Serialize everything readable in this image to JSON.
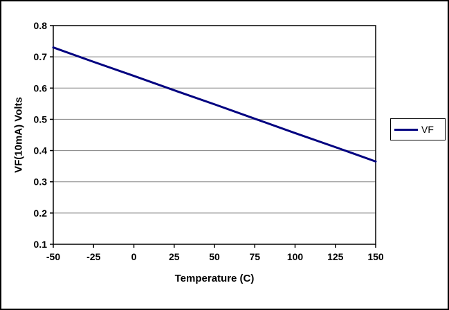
{
  "colors": {
    "line": "#000080",
    "grid": "#808080",
    "axis": "#000000",
    "background": "#ffffff"
  },
  "chart_data": {
    "type": "line",
    "title": "",
    "xlabel": "Temperature (C)",
    "ylabel": "VF(10mA) Volts",
    "xlim": [
      -50,
      150
    ],
    "ylim": [
      0.1,
      0.8
    ],
    "xticks": [
      -50,
      -25,
      0,
      25,
      50,
      75,
      100,
      125,
      150
    ],
    "yticks": [
      0.1,
      0.2,
      0.3,
      0.4,
      0.5,
      0.6,
      0.7,
      0.8
    ],
    "grid": "horizontal",
    "legend_position": "right",
    "series": [
      {
        "name": "VF",
        "color": "#000080",
        "x": [
          -50,
          -25,
          0,
          25,
          50,
          75,
          100,
          125,
          150
        ],
        "y": [
          0.73,
          0.684,
          0.639,
          0.593,
          0.548,
          0.502,
          0.456,
          0.411,
          0.365
        ]
      }
    ]
  }
}
